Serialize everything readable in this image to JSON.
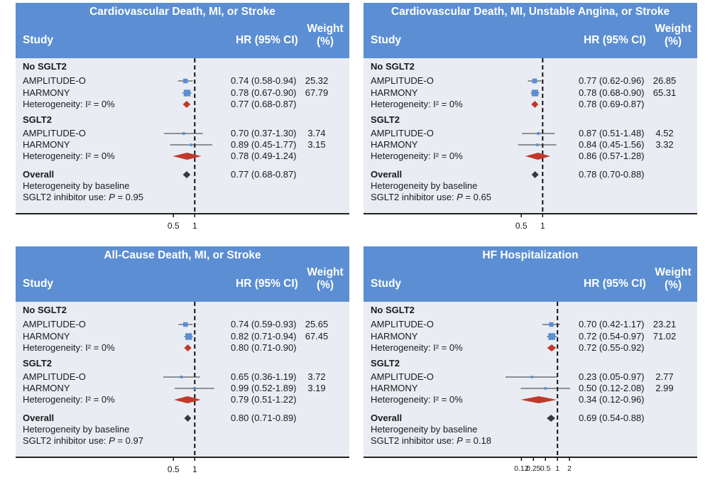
{
  "colors": {
    "header": "#5b8ed3",
    "panel_bg": "#e9edf3",
    "study_marker": "#5b8ed3",
    "subgroup_diamond": "#c0392b",
    "overall_diamond": "#3a3a3a"
  },
  "columns": {
    "study": "Study",
    "hr": "HR (95% CI)",
    "weight_line1": "Weight",
    "weight_line2": "(%)"
  },
  "chart_data": [
    {
      "type": "forest",
      "title": "Cardiovascular Death, MI, or Stroke",
      "xscale": "log",
      "xlim": [
        0.3,
        3.0
      ],
      "ref_line": 1,
      "ticks": [
        0.5,
        1
      ],
      "tick_labels": [
        "0.5",
        "1"
      ],
      "rows": [
        {
          "kind": "group",
          "label": "No SGLT2"
        },
        {
          "kind": "study",
          "label": "AMPLITUDE-O",
          "hr": 0.74,
          "lo": 0.58,
          "hi": 0.94,
          "hr_text": "0.74 (0.58-0.94)",
          "weight": "25.32"
        },
        {
          "kind": "study",
          "label": "HARMONY",
          "hr": 0.78,
          "lo": 0.67,
          "hi": 0.9,
          "hr_text": "0.78 (0.67-0.90)",
          "weight": "67.79"
        },
        {
          "kind": "subtotal",
          "label": "Heterogeneity: I² = 0%",
          "hr": 0.77,
          "lo": 0.68,
          "hi": 0.87,
          "hr_text": "0.77 (0.68-0.87)"
        },
        {
          "kind": "group",
          "label": "SGLT2"
        },
        {
          "kind": "study",
          "label": "AMPLITUDE-O",
          "hr": 0.7,
          "lo": 0.37,
          "hi": 1.3,
          "hr_text": "0.70 (0.37-1.30)",
          "weight": "3.74"
        },
        {
          "kind": "study",
          "label": "HARMONY",
          "hr": 0.89,
          "lo": 0.45,
          "hi": 1.77,
          "hr_text": "0.89 (0.45-1.77)",
          "weight": "3.15"
        },
        {
          "kind": "subtotal",
          "label": "Heterogeneity: I² = 0%",
          "hr": 0.78,
          "lo": 0.49,
          "hi": 1.24,
          "hr_text": "0.78 (0.49-1.24)"
        },
        {
          "kind": "overall",
          "label": "Overall",
          "hr": 0.77,
          "lo": 0.68,
          "hi": 0.87,
          "hr_text": "0.77 (0.68-0.87)"
        },
        {
          "kind": "note",
          "label": "Heterogeneity by baseline"
        },
        {
          "kind": "note",
          "label": "SGLT2 inhibitor use: ",
          "p_label": "P",
          "p_value": " = 0.95"
        }
      ]
    },
    {
      "type": "forest",
      "title": "Cardiovascular Death, MI, Unstable Angina, or Stroke",
      "xscale": "log",
      "xlim": [
        0.3,
        3.0
      ],
      "ref_line": 1,
      "ticks": [
        0.5,
        1
      ],
      "tick_labels": [
        "0.5",
        "1"
      ],
      "rows": [
        {
          "kind": "group",
          "label": "No SGLT2"
        },
        {
          "kind": "study",
          "label": "AMPLITUDE-O",
          "hr": 0.77,
          "lo": 0.62,
          "hi": 0.96,
          "hr_text": "0.77 (0.62-0.96)",
          "weight": "26.85"
        },
        {
          "kind": "study",
          "label": "HARMONY",
          "hr": 0.78,
          "lo": 0.68,
          "hi": 0.9,
          "hr_text": "0.78 (0.68-0.90)",
          "weight": "65.31"
        },
        {
          "kind": "subtotal",
          "label": "Heterogeneity: I² = 0%",
          "hr": 0.78,
          "lo": 0.69,
          "hi": 0.87,
          "hr_text": "0.78 (0.69-0.87)"
        },
        {
          "kind": "group",
          "label": "SGLT2"
        },
        {
          "kind": "study",
          "label": "AMPLITUDE-O",
          "hr": 0.87,
          "lo": 0.51,
          "hi": 1.48,
          "hr_text": "0.87 (0.51-1.48)",
          "weight": "4.52"
        },
        {
          "kind": "study",
          "label": "HARMONY",
          "hr": 0.84,
          "lo": 0.45,
          "hi": 1.56,
          "hr_text": "0.84 (0.45-1.56)",
          "weight": "3.32"
        },
        {
          "kind": "subtotal",
          "label": "Heterogeneity: I² = 0%",
          "hr": 0.86,
          "lo": 0.57,
          "hi": 1.28,
          "hr_text": "0.86 (0.57-1.28)"
        },
        {
          "kind": "overall",
          "label": "Overall",
          "hr": 0.78,
          "lo": 0.7,
          "hi": 0.88,
          "hr_text": "0.78 (0.70-0.88)"
        },
        {
          "kind": "note",
          "label": "Heterogeneity by baseline"
        },
        {
          "kind": "note",
          "label": "SGLT2 inhibitor use: ",
          "p_label": "P",
          "p_value": " = 0.65"
        }
      ]
    },
    {
      "type": "forest",
      "title": "All-Cause Death, MI, or Stroke",
      "xscale": "log",
      "xlim": [
        0.3,
        3.0
      ],
      "ref_line": 1,
      "ticks": [
        0.5,
        1
      ],
      "tick_labels": [
        "0.5",
        "1"
      ],
      "rows": [
        {
          "kind": "group",
          "label": "No SGLT2"
        },
        {
          "kind": "study",
          "label": "AMPLITUDE-O",
          "hr": 0.74,
          "lo": 0.59,
          "hi": 0.93,
          "hr_text": "0.74 (0.59-0.93)",
          "weight": "25.65"
        },
        {
          "kind": "study",
          "label": "HARMONY",
          "hr": 0.82,
          "lo": 0.71,
          "hi": 0.94,
          "hr_text": "0.82 (0.71-0.94)",
          "weight": "67.45"
        },
        {
          "kind": "subtotal",
          "label": "Heterogeneity: I² = 0%",
          "hr": 0.8,
          "lo": 0.71,
          "hi": 0.9,
          "hr_text": "0.80 (0.71-0.90)"
        },
        {
          "kind": "group",
          "label": "SGLT2"
        },
        {
          "kind": "study",
          "label": "AMPLITUDE-O",
          "hr": 0.65,
          "lo": 0.36,
          "hi": 1.19,
          "hr_text": "0.65 (0.36-1.19)",
          "weight": "3.72"
        },
        {
          "kind": "study",
          "label": "HARMONY",
          "hr": 0.99,
          "lo": 0.52,
          "hi": 1.89,
          "hr_text": "0.99 (0.52-1.89)",
          "weight": "3.19"
        },
        {
          "kind": "subtotal",
          "label": "Heterogeneity: I² = 0%",
          "hr": 0.79,
          "lo": 0.51,
          "hi": 1.22,
          "hr_text": "0.79 (0.51-1.22)"
        },
        {
          "kind": "overall",
          "label": "Overall",
          "hr": 0.8,
          "lo": 0.71,
          "hi": 0.89,
          "hr_text": "0.80 (0.71-0.89)"
        },
        {
          "kind": "note",
          "label": "Heterogeneity by baseline"
        },
        {
          "kind": "note",
          "label": "SGLT2 inhibitor use: ",
          "p_label": "P",
          "p_value": " = 0.97"
        }
      ]
    },
    {
      "type": "forest",
      "title": "HF Hospitalization",
      "xscale": "log",
      "xlim": [
        0.05,
        3.0
      ],
      "ref_line": 1,
      "ticks": [
        0.125,
        0.25,
        0.5,
        1,
        2
      ],
      "tick_labels": [
        "0.12",
        "0.25",
        "0.5",
        "1",
        "2"
      ],
      "rows": [
        {
          "kind": "group",
          "label": "No SGLT2"
        },
        {
          "kind": "study",
          "label": "AMPLITUDE-O",
          "hr": 0.7,
          "lo": 0.42,
          "hi": 1.17,
          "hr_text": "0.70 (0.42-1.17)",
          "weight": "23.21"
        },
        {
          "kind": "study",
          "label": "HARMONY",
          "hr": 0.72,
          "lo": 0.54,
          "hi": 0.97,
          "hr_text": "0.72 (0.54-0.97)",
          "weight": "71.02"
        },
        {
          "kind": "subtotal",
          "label": "Heterogeneity: I² = 0%",
          "hr": 0.72,
          "lo": 0.55,
          "hi": 0.92,
          "hr_text": "0.72 (0.55-0.92)"
        },
        {
          "kind": "group",
          "label": "SGLT2"
        },
        {
          "kind": "study",
          "label": "AMPLITUDE-O",
          "hr": 0.23,
          "lo": 0.05,
          "hi": 0.97,
          "hr_text": "0.23 (0.05-0.97)",
          "weight": "2.77"
        },
        {
          "kind": "study",
          "label": "HARMONY",
          "hr": 0.5,
          "lo": 0.12,
          "hi": 2.08,
          "hr_text": "0.50 (0.12-2.08)",
          "weight": "2.99"
        },
        {
          "kind": "subtotal",
          "label": "Heterogeneity: I² = 0%",
          "hr": 0.34,
          "lo": 0.12,
          "hi": 0.96,
          "hr_text": "0.34 (0.12-0.96)"
        },
        {
          "kind": "overall",
          "label": "Overall",
          "hr": 0.69,
          "lo": 0.54,
          "hi": 0.88,
          "hr_text": "0.69 (0.54-0.88)"
        },
        {
          "kind": "note",
          "label": "Heterogeneity by baseline"
        },
        {
          "kind": "note",
          "label": "SGLT2 inhibitor use: ",
          "p_label": "P",
          "p_value": " = 0.18"
        }
      ]
    }
  ]
}
